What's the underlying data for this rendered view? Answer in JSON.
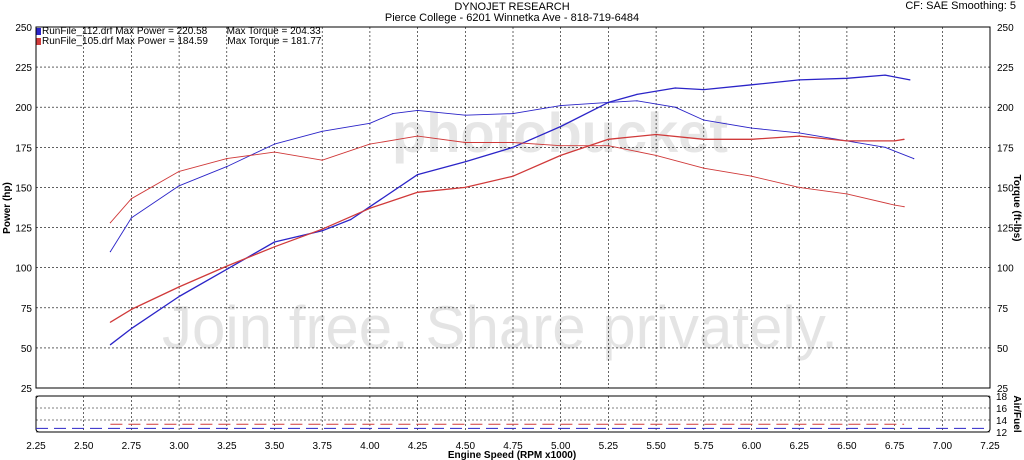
{
  "header": {
    "title": "DYNOJET RESEARCH",
    "subtitle": "Pierce College - 6201 Winnetka Ave - 818-719-6484",
    "settings": "CF: SAE  Smoothing: 5"
  },
  "watermark": {
    "line1": "photobucket",
    "line2": "Join free. Share privately."
  },
  "legend": [
    {
      "file": "RunFile_112.drf",
      "power": "Max Power = 220.58",
      "torque": "Max Torque = 204.33",
      "color": "#2b24c8"
    },
    {
      "file": "RunFile_105.drf",
      "power": "Max Power = 184.59",
      "torque": "Max Torque = 181.77",
      "color": "#d03a3a"
    }
  ],
  "chart_data": {
    "type": "line",
    "title": "DYNOJET RESEARCH",
    "xlabel": "Engine Speed (RPM x1000)",
    "ylabel": "Power (hp)",
    "y2label": "Torque (ft-lbs)",
    "y3label": "Air/Fuel",
    "xlim": [
      2.25,
      7.25
    ],
    "ylim": [
      25,
      250
    ],
    "afr_lim": [
      12,
      18
    ],
    "x_ticks": [
      "2.25",
      "2.50",
      "2.75",
      "3.00",
      "3.25",
      "3.50",
      "3.75",
      "4.00",
      "4.25",
      "4.50",
      "4.75",
      "5.00",
      "5.25",
      "5.50",
      "5.75",
      "6.00",
      "6.25",
      "6.50",
      "6.75",
      "7.00",
      "7.25"
    ],
    "y_ticks": [
      "25",
      "50",
      "75",
      "100",
      "125",
      "150",
      "175",
      "200",
      "225",
      "250"
    ],
    "afr_ticks": [
      "12",
      "14",
      "16",
      "18"
    ],
    "grid": true,
    "legend_position": "top-left",
    "series": [
      {
        "name": "RunFile_112.drf",
        "kind": "power",
        "color": "#2b24c8",
        "x": [
          2.64,
          2.75,
          3.0,
          3.25,
          3.5,
          3.75,
          3.9,
          4.0,
          4.25,
          4.5,
          4.75,
          5.0,
          5.25,
          5.4,
          5.6,
          5.75,
          6.0,
          6.25,
          6.5,
          6.7,
          6.83
        ],
        "y": [
          52,
          62,
          82,
          99,
          116,
          123,
          130,
          138,
          158,
          166,
          175,
          188,
          203,
          208,
          212,
          211,
          214,
          217,
          218,
          220,
          217
        ]
      },
      {
        "name": "RunFile_112.drf",
        "kind": "torque",
        "color": "#2b24c8",
        "x": [
          2.64,
          2.75,
          3.0,
          3.25,
          3.5,
          3.75,
          4.0,
          4.12,
          4.25,
          4.5,
          4.75,
          5.0,
          5.25,
          5.4,
          5.6,
          5.75,
          6.0,
          6.25,
          6.5,
          6.7,
          6.85
        ],
        "y": [
          110,
          131,
          151,
          163,
          177,
          185,
          190,
          196,
          198,
          195,
          196,
          201,
          203,
          204,
          200,
          192,
          187,
          184,
          179,
          175,
          168
        ]
      },
      {
        "name": "RunFile_105.drf",
        "kind": "power",
        "color": "#d03a3a",
        "x": [
          2.64,
          2.75,
          3.0,
          3.25,
          3.5,
          3.75,
          4.0,
          4.25,
          4.5,
          4.75,
          5.0,
          5.25,
          5.5,
          5.75,
          6.0,
          6.25,
          6.5,
          6.75,
          6.8
        ],
        "y": [
          66,
          74,
          88,
          101,
          113,
          124,
          137,
          147,
          150,
          157,
          170,
          180,
          183,
          180,
          180,
          182,
          179,
          179,
          180
        ]
      },
      {
        "name": "RunFile_105.drf",
        "kind": "torque",
        "color": "#d03a3a",
        "x": [
          2.64,
          2.75,
          3.0,
          3.25,
          3.5,
          3.75,
          4.0,
          4.25,
          4.5,
          4.75,
          5.0,
          5.25,
          5.5,
          5.75,
          6.0,
          6.25,
          6.5,
          6.75,
          6.8
        ],
        "y": [
          128,
          143,
          160,
          168,
          172,
          167,
          177,
          182,
          178,
          178,
          176,
          176,
          170,
          162,
          157,
          150,
          146,
          139,
          138
        ]
      }
    ],
    "afr_series": [
      {
        "color": "#d03a3a",
        "x": [
          2.64,
          6.8
        ],
        "y": [
          13.3,
          13.3
        ],
        "dashed": true
      },
      {
        "color": "#2b24c8",
        "x": [
          2.25,
          7.25
        ],
        "y": [
          12.6,
          12.6
        ],
        "dashed": true
      }
    ]
  }
}
